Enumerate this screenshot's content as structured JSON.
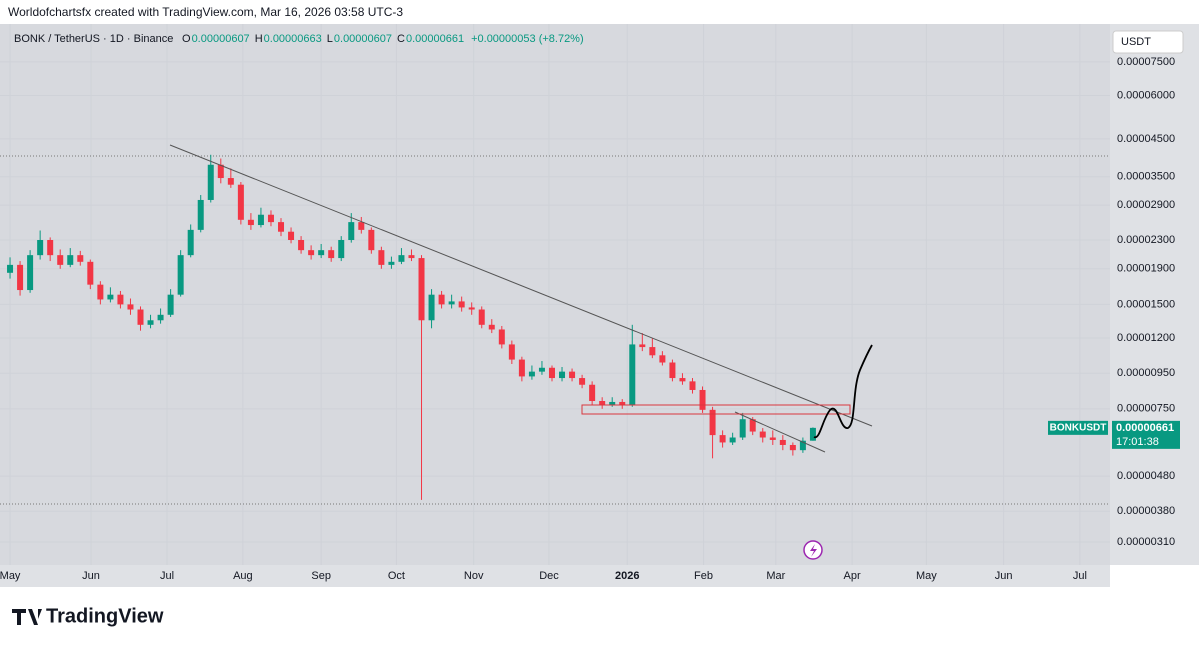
{
  "header": {
    "attribution": "Worldofchartsfx created with TradingView.com, Mar 16, 2026 03:58 UTC-3",
    "symbol": "BONK / TetherUS · 1D · Binance",
    "ohlc": [
      {
        "label": "O",
        "value": "0.00000607"
      },
      {
        "label": "H",
        "value": "0.00000663"
      },
      {
        "label": "L",
        "value": "0.00000607"
      },
      {
        "label": "C",
        "value": "0.00000661"
      }
    ],
    "change": "+0.00000053 (+8.72%)",
    "currency": "USDT",
    "price_label": {
      "symbol": "BONKUSDT",
      "price": "0.00000661",
      "countdown": "17:01:38"
    },
    "brand": "TradingView"
  },
  "chart_data": {
    "type": "candlestick",
    "log_scale": true,
    "up_color": "#089981",
    "down_color": "#f23645",
    "ylim": [
      2.66e-06,
      9.27e-05
    ],
    "yticks": [
      {
        "value": 7.5e-05,
        "label": "0.00007500"
      },
      {
        "value": 6e-05,
        "label": "0.00006000"
      },
      {
        "value": 4.5e-05,
        "label": "0.00004500"
      },
      {
        "value": 3.5e-05,
        "label": "0.00003500"
      },
      {
        "value": 2.9e-05,
        "label": "0.00002900"
      },
      {
        "value": 2.3e-05,
        "label": "0.00002300"
      },
      {
        "value": 1.9e-05,
        "label": "0.00001900"
      },
      {
        "value": 1.5e-05,
        "label": "0.00001500"
      },
      {
        "value": 1.2e-05,
        "label": "0.00001200"
      },
      {
        "value": 9.5e-06,
        "label": "0.00000950"
      },
      {
        "value": 7.5e-06,
        "label": "0.00000750"
      },
      {
        "value": 4.8e-06,
        "label": "0.00000480"
      },
      {
        "value": 3.8e-06,
        "label": "0.00000380"
      },
      {
        "value": 3.1e-06,
        "label": "0.00000310"
      }
    ],
    "xlim": [
      -1.0,
      109.6
    ],
    "xticks": [
      {
        "value": 0,
        "label": "May"
      },
      {
        "value": 8.07,
        "label": "Jun"
      },
      {
        "value": 15.64,
        "label": "Jul"
      },
      {
        "value": 23.2,
        "label": "Aug"
      },
      {
        "value": 31.0,
        "label": "Sep"
      },
      {
        "value": 38.5,
        "label": "Oct"
      },
      {
        "value": 46.2,
        "label": "Nov"
      },
      {
        "value": 53.7,
        "label": "Dec"
      },
      {
        "value": 61.5,
        "label": "2026"
      },
      {
        "value": 69.1,
        "label": "Feb"
      },
      {
        "value": 76.3,
        "label": "Mar"
      },
      {
        "value": 83.9,
        "label": "Apr"
      },
      {
        "value": 91.3,
        "label": "May"
      },
      {
        "value": 99.0,
        "label": "Jun"
      },
      {
        "value": 106.6,
        "label": "Jul"
      }
    ],
    "candles": [
      [
        1.85e-05,
        2.05e-05,
        1.78e-05,
        1.95e-05
      ],
      [
        1.95e-05,
        2e-05,
        1.59e-05,
        1.65e-05
      ],
      [
        1.65e-05,
        2.15e-05,
        1.62e-05,
        2.08e-05
      ],
      [
        2.08e-05,
        2.45e-05,
        2.02e-05,
        2.3e-05
      ],
      [
        2.3e-05,
        2.34e-05,
        2e-05,
        2.08e-05
      ],
      [
        2.08e-05,
        2.16e-05,
        1.9e-05,
        1.95e-05
      ],
      [
        1.95e-05,
        2.18e-05,
        1.92e-05,
        2.08e-05
      ],
      [
        2.08e-05,
        2.14e-05,
        1.94e-05,
        1.99e-05
      ],
      [
        1.99e-05,
        2.02e-05,
        1.66e-05,
        1.71e-05
      ],
      [
        1.71e-05,
        1.75e-05,
        1.5e-05,
        1.55e-05
      ],
      [
        1.55e-05,
        1.68e-05,
        1.52e-05,
        1.6e-05
      ],
      [
        1.6e-05,
        1.64e-05,
        1.46e-05,
        1.5e-05
      ],
      [
        1.5e-05,
        1.56e-05,
        1.4e-05,
        1.45e-05
      ],
      [
        1.45e-05,
        1.48e-05,
        1.26e-05,
        1.31e-05
      ],
      [
        1.31e-05,
        1.4e-05,
        1.28e-05,
        1.35e-05
      ],
      [
        1.35e-05,
        1.46e-05,
        1.32e-05,
        1.4e-05
      ],
      [
        1.4e-05,
        1.66e-05,
        1.38e-05,
        1.6e-05
      ],
      [
        1.6e-05,
        2.15e-05,
        1.58e-05,
        2.08e-05
      ],
      [
        2.08e-05,
        2.55e-05,
        2.05e-05,
        2.46e-05
      ],
      [
        2.46e-05,
        3.1e-05,
        2.42e-05,
        3e-05
      ],
      [
        3e-05,
        4.05e-05,
        2.95e-05,
        3.79e-05
      ],
      [
        3.79e-05,
        3.95e-05,
        3.35e-05,
        3.47e-05
      ],
      [
        3.47e-05,
        3.7e-05,
        3.25e-05,
        3.32e-05
      ],
      [
        3.32e-05,
        3.38e-05,
        2.55e-05,
        2.63e-05
      ],
      [
        2.63e-05,
        2.75e-05,
        2.46e-05,
        2.54e-05
      ],
      [
        2.54e-05,
        2.85e-05,
        2.5e-05,
        2.72e-05
      ],
      [
        2.72e-05,
        2.8e-05,
        2.52e-05,
        2.59e-05
      ],
      [
        2.59e-05,
        2.66e-05,
        2.36e-05,
        2.43e-05
      ],
      [
        2.43e-05,
        2.5e-05,
        2.25e-05,
        2.3e-05
      ],
      [
        2.3e-05,
        2.36e-05,
        2.1e-05,
        2.15e-05
      ],
      [
        2.15e-05,
        2.22e-05,
        2.02e-05,
        2.08e-05
      ],
      [
        2.08e-05,
        2.24e-05,
        2.04e-05,
        2.15e-05
      ],
      [
        2.15e-05,
        2.2e-05,
        1.99e-05,
        2.04e-05
      ],
      [
        2.04e-05,
        2.36e-05,
        2e-05,
        2.3e-05
      ],
      [
        2.3e-05,
        2.75e-05,
        2.26e-05,
        2.59e-05
      ],
      [
        2.59e-05,
        2.68e-05,
        2.4e-05,
        2.46e-05
      ],
      [
        2.46e-05,
        2.5e-05,
        2.1e-05,
        2.15e-05
      ],
      [
        2.15e-05,
        2.2e-05,
        1.9e-05,
        1.95e-05
      ],
      [
        1.95e-05,
        2.06e-05,
        1.9e-05,
        1.99e-05
      ],
      [
        1.99e-05,
        2.18e-05,
        1.96e-05,
        2.08e-05
      ],
      [
        2.08e-05,
        2.16e-05,
        2e-05,
        2.04e-05
      ],
      [
        2.04e-05,
        2.08e-05,
        4.1e-06,
        1.35e-05
      ],
      [
        1.35e-05,
        1.66e-05,
        1.28e-05,
        1.6e-05
      ],
      [
        1.6e-05,
        1.64e-05,
        1.46e-05,
        1.5e-05
      ],
      [
        1.5e-05,
        1.6e-05,
        1.46e-05,
        1.53e-05
      ],
      [
        1.53e-05,
        1.58e-05,
        1.43e-05,
        1.47e-05
      ],
      [
        1.47e-05,
        1.52e-05,
        1.4e-05,
        1.45e-05
      ],
      [
        1.45e-05,
        1.48e-05,
        1.28e-05,
        1.31e-05
      ],
      [
        1.31e-05,
        1.36e-05,
        1.24e-05,
        1.27e-05
      ],
      [
        1.27e-05,
        1.3e-05,
        1.12e-05,
        1.15e-05
      ],
      [
        1.15e-05,
        1.18e-05,
        1.01e-05,
        1.04e-05
      ],
      [
        1.04e-05,
        1.06e-05,
        9e-06,
        9.3e-06
      ],
      [
        9.3e-06,
        1e-05,
        9.1e-06,
        9.6e-06
      ],
      [
        9.6e-06,
        1.03e-05,
        9.4e-06,
        9.85e-06
      ],
      [
        9.85e-06,
        1e-05,
        9e-06,
        9.2e-06
      ],
      [
        9.2e-06,
        9.9e-06,
        9e-06,
        9.6e-06
      ],
      [
        9.6e-06,
        9.8e-06,
        9e-06,
        9.2e-06
      ],
      [
        9.2e-06,
        9.4e-06,
        8.6e-06,
        8.8e-06
      ],
      [
        8.8e-06,
        9e-06,
        7.7e-06,
        7.9e-06
      ],
      [
        7.9e-06,
        8.1e-06,
        7.5e-06,
        7.7e-06
      ],
      [
        7.7e-06,
        8.1e-06,
        7.6e-06,
        7.85e-06
      ],
      [
        7.85e-06,
        8e-06,
        7.5e-06,
        7.7e-06
      ],
      [
        7.7e-06,
        1.31e-05,
        7.6e-06,
        1.15e-05
      ],
      [
        1.15e-05,
        1.24e-05,
        1.1e-05,
        1.13e-05
      ],
      [
        1.13e-05,
        1.2e-05,
        1.05e-05,
        1.07e-05
      ],
      [
        1.07e-05,
        1.1e-05,
        1e-05,
        1.02e-05
      ],
      [
        1.02e-05,
        1.04e-05,
        9e-06,
        9.2e-06
      ],
      [
        9.2e-06,
        9.5e-06,
        8.8e-06,
        9e-06
      ],
      [
        9e-06,
        9.2e-06,
        8.3e-06,
        8.5e-06
      ],
      [
        8.5e-06,
        8.7e-06,
        7.3e-06,
        7.45e-06
      ],
      [
        7.45e-06,
        7.6e-06,
        5.4e-06,
        6.3e-06
      ],
      [
        6.3e-06,
        6.5e-06,
        5.8e-06,
        6e-06
      ],
      [
        6e-06,
        6.4e-06,
        5.9e-06,
        6.2e-06
      ],
      [
        6.2e-06,
        7.3e-06,
        6.1e-06,
        7e-06
      ],
      [
        7e-06,
        7.1e-06,
        6.3e-06,
        6.45e-06
      ],
      [
        6.45e-06,
        6.6e-06,
        6e-06,
        6.2e-06
      ],
      [
        6.2e-06,
        6.5e-06,
        5.9e-06,
        6.1e-06
      ],
      [
        6.1e-06,
        6.3e-06,
        5.7e-06,
        5.9e-06
      ],
      [
        5.9e-06,
        6e-06,
        5.5e-06,
        5.7e-06
      ],
      [
        5.7e-06,
        6.2e-06,
        5.6e-06,
        6.07e-06
      ],
      [
        6.07e-06,
        6.63e-06,
        6.07e-06,
        6.61e-06
      ]
    ]
  }
}
